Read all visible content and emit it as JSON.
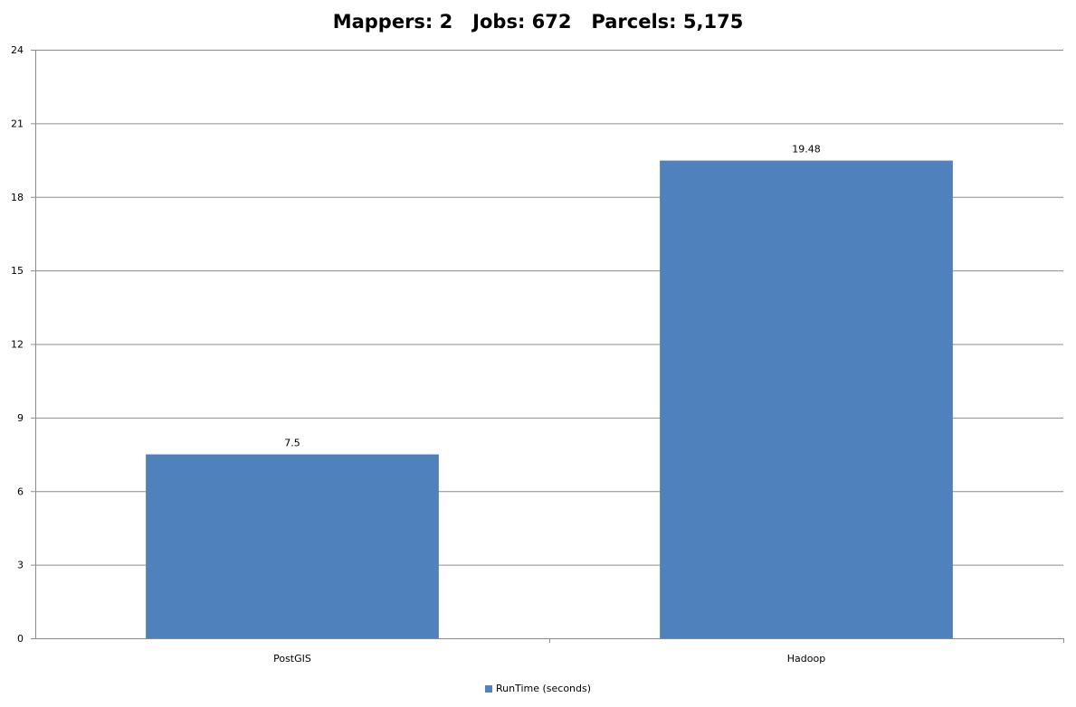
{
  "colors": {
    "bar": "#4f81bd",
    "gridline": "#8c8c8c",
    "axis": "#8c8c8c",
    "text": "#000000"
  },
  "chart_data": {
    "type": "bar",
    "title": "Mappers: 2   Jobs: 672   Parcels: 5,175",
    "categories": [
      "PostGIS",
      "Hadoop"
    ],
    "series": [
      {
        "name": "RunTime (seconds)",
        "values": [
          7.5,
          19.48
        ]
      }
    ],
    "data_labels": [
      "7.5",
      "19.48"
    ],
    "ylim": [
      0,
      24
    ],
    "yticks": [
      0,
      3,
      6,
      9,
      12,
      15,
      18,
      21,
      24
    ],
    "xlabel": "",
    "ylabel": "",
    "grid": true,
    "legend_position": "bottom"
  }
}
